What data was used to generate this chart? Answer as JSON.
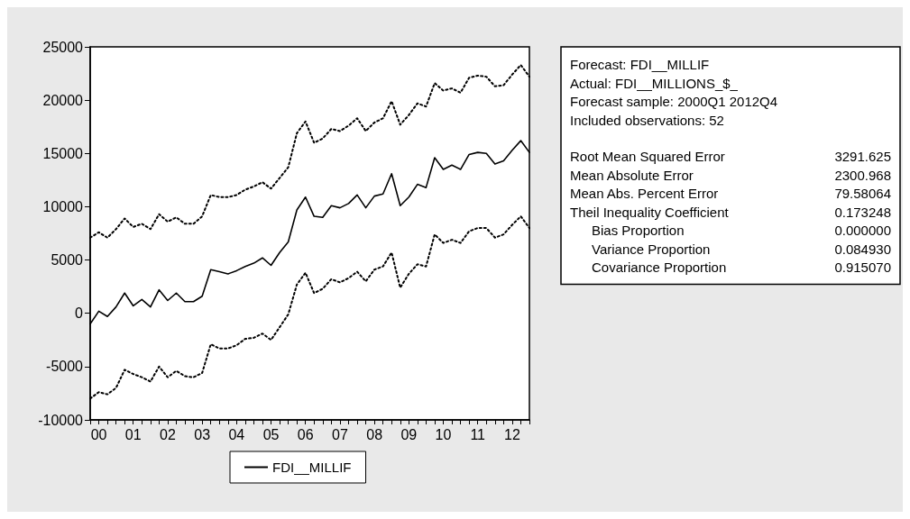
{
  "chart_data": {
    "type": "line",
    "categories": [
      null,
      "00",
      null,
      null,
      null,
      "01",
      null,
      null,
      null,
      "02",
      null,
      null,
      null,
      "03",
      null,
      null,
      null,
      "04",
      null,
      null,
      null,
      "05",
      null,
      null,
      null,
      "06",
      null,
      null,
      null,
      "07",
      null,
      null,
      null,
      "08",
      null,
      null,
      null,
      "09",
      null,
      null,
      null,
      "10",
      null,
      null,
      null,
      "11",
      null,
      null,
      null,
      "12",
      null,
      null
    ],
    "series": [
      {
        "name": "FDI__MILLIF",
        "color": "#000000",
        "line_style": "solid",
        "values": [
          -1000,
          200,
          -300,
          600,
          1900,
          700,
          1300,
          600,
          2200,
          1200,
          1900,
          1100,
          1100,
          1600,
          4100,
          3900,
          3700,
          4000,
          4400,
          4700,
          5200,
          4500,
          5700,
          6700,
          9700,
          10900,
          9100,
          9000,
          10100,
          9900,
          10300,
          11100,
          9900,
          11000,
          11200,
          13100,
          10100,
          10900,
          12100,
          11800,
          14600,
          13500,
          13900,
          13500,
          14900,
          15100,
          15000,
          14000,
          14300,
          15300,
          16200,
          15100
        ]
      },
      {
        "color": "#000000",
        "line_style": "dotted",
        "values": [
          7100,
          7600,
          7100,
          7900,
          8900,
          8100,
          8400,
          7900,
          9300,
          8600,
          9000,
          8400,
          8400,
          9100,
          11100,
          10900,
          10900,
          11100,
          11600,
          11900,
          12300,
          11700,
          12700,
          13700,
          16900,
          18000,
          16000,
          16400,
          17300,
          17100,
          17600,
          18300,
          17100,
          17900,
          18300,
          19900,
          17700,
          18600,
          19700,
          19400,
          21600,
          20900,
          21100,
          20700,
          22100,
          22300,
          22200,
          21300,
          21400,
          22400,
          23300,
          22200
        ]
      },
      {
        "color": "#000000",
        "line_style": "dotted",
        "values": [
          -8000,
          -7400,
          -7600,
          -7000,
          -5300,
          -5700,
          -6000,
          -6400,
          -5000,
          -6000,
          -5400,
          -5900,
          -6000,
          -5600,
          -2900,
          -3300,
          -3300,
          -3000,
          -2400,
          -2300,
          -1900,
          -2500,
          -1300,
          -100,
          2700,
          3800,
          1900,
          2300,
          3200,
          2900,
          3300,
          3900,
          3000,
          4100,
          4400,
          5700,
          2400,
          3700,
          4600,
          4400,
          7400,
          6600,
          6900,
          6600,
          7700,
          8000,
          8000,
          7100,
          7400,
          8300,
          9100,
          8000
        ]
      }
    ],
    "ylim": [
      -10000,
      25000
    ],
    "yticks": [
      -10000,
      -5000,
      0,
      5000,
      10000,
      15000,
      20000,
      25000
    ],
    "grid": false,
    "legend": "bottom",
    "marker": "none",
    "annotations": [
      "Forecast: FDI__MILLIF",
      "Actual: FDI__MILLIONS_$_",
      "Forecast sample: 2000Q1 2012Q4",
      "Included observations: 52",
      "Root Mean Squared Error\t3291.625",
      "Mean Absolute Error\t2300.968",
      "Mean Abs. Percent Error\t79.58064",
      "Theil Inequality Coefficient\t0.173248",
      "   Bias Proportion\t0.000000",
      "   Variance Proportion\t0.084930",
      "   Covariance Proportion\t0.915070"
    ]
  }
}
